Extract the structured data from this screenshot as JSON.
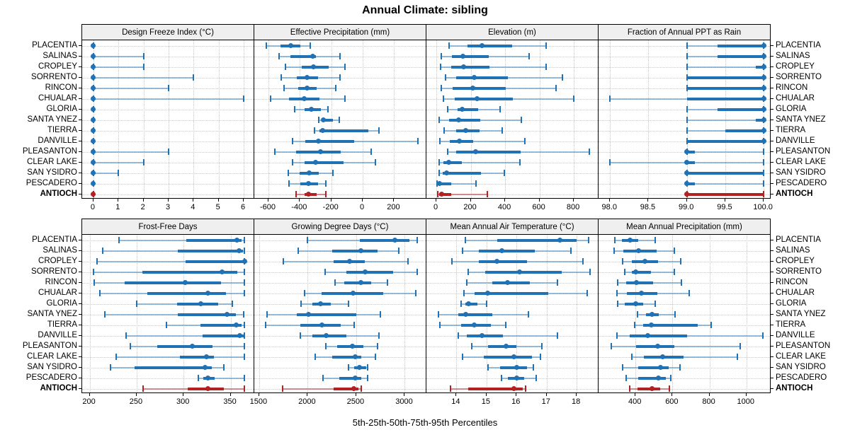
{
  "title": "Annual Climate: sibling",
  "caption": "5th-25th-50th-75th-95th Percentiles",
  "colors": {
    "series_blue": "#2171b5",
    "target_red": "#b22222",
    "strip_bg": "#efefef",
    "grid": "#c9c9c9"
  },
  "sites": [
    "PLACENTIA",
    "SALINAS",
    "CROPLEY",
    "SORRENTO",
    "RINCON",
    "CHUALAR",
    "GLORIA",
    "SANTA YNEZ",
    "TIERRA",
    "DANVILLE",
    "PLEASANTON",
    "CLEAR LAKE",
    "SAN YSIDRO",
    "PESCADERO",
    "ANTIOCH"
  ],
  "target_site": "ANTIOCH",
  "chart_data": {
    "type": "interval",
    "subtype": "percentile-dotplot-trellis",
    "percentiles": [
      5,
      25,
      50,
      75,
      95
    ],
    "grid": true,
    "layout": "2 rows x 4 columns",
    "panels": [
      {
        "title": "Design Freeze Index (°C)",
        "xlim": [
          -0.45,
          6.45
        ],
        "ticks": [
          {
            "v": 0,
            "label": "0"
          },
          {
            "v": 1,
            "label": "1"
          },
          {
            "v": 2,
            "label": "2"
          },
          {
            "v": 3,
            "label": "3"
          },
          {
            "v": 4,
            "label": "4"
          },
          {
            "v": 5,
            "label": "5"
          },
          {
            "v": 6,
            "label": "6"
          }
        ],
        "rows": [
          [
            0,
            0,
            0,
            0,
            0
          ],
          [
            0,
            0,
            0,
            0,
            2
          ],
          [
            0,
            0,
            0,
            0,
            2
          ],
          [
            0,
            0,
            0,
            0,
            4
          ],
          [
            0,
            0,
            0,
            0,
            3
          ],
          [
            0,
            0,
            0,
            0,
            6
          ],
          [
            0,
            0,
            0,
            0,
            0
          ],
          [
            0,
            0,
            0,
            0,
            0
          ],
          [
            0,
            0,
            0,
            0,
            0
          ],
          [
            0,
            0,
            0,
            0,
            0
          ],
          [
            0,
            0,
            0,
            0,
            3
          ],
          [
            0,
            0,
            0,
            0,
            2
          ],
          [
            0,
            0,
            0,
            0,
            1
          ],
          [
            0,
            0,
            0,
            0,
            0
          ],
          [
            0,
            0,
            0,
            0,
            0
          ]
        ]
      },
      {
        "title": "Effective Precipitation (mm)",
        "xlim": [
          -690,
          410
        ],
        "ticks": [
          {
            "v": -600,
            "label": "-600"
          },
          {
            "v": -400,
            "label": "-400"
          },
          {
            "v": -200,
            "label": "-200"
          },
          {
            "v": 0,
            "label": "0"
          },
          {
            "v": 200,
            "label": "200"
          }
        ],
        "rows": [
          [
            -615,
            -525,
            -460,
            -395,
            -335
          ],
          [
            -530,
            -460,
            -320,
            -300,
            -145
          ],
          [
            -490,
            -390,
            -315,
            -215,
            -115
          ],
          [
            -520,
            -420,
            -355,
            -285,
            -145
          ],
          [
            -500,
            -410,
            -355,
            -295,
            -170
          ],
          [
            -585,
            -470,
            -370,
            -275,
            -115
          ],
          [
            -435,
            -370,
            -325,
            -265,
            -220
          ],
          [
            -280,
            -260,
            -250,
            -190,
            -150
          ],
          [
            -305,
            -275,
            -255,
            35,
            105
          ],
          [
            -445,
            -365,
            -280,
            -55,
            350
          ],
          [
            -560,
            -425,
            -270,
            -140,
            55
          ],
          [
            -445,
            -370,
            -300,
            -120,
            80
          ],
          [
            -475,
            -400,
            -340,
            -280,
            -190
          ],
          [
            -470,
            -395,
            -345,
            -285,
            -235
          ],
          [
            -425,
            -370,
            -345,
            -295,
            -235
          ]
        ]
      },
      {
        "title": "Elevation (m)",
        "xlim": [
          -58,
          948
        ],
        "ticks": [
          {
            "v": 0,
            "label": "0"
          },
          {
            "v": 200,
            "label": "200"
          },
          {
            "v": 400,
            "label": "400"
          },
          {
            "v": 600,
            "label": "600"
          },
          {
            "v": 800,
            "label": "800"
          }
        ],
        "rows": [
          [
            75,
            180,
            265,
            440,
            640
          ],
          [
            30,
            90,
            155,
            305,
            540
          ],
          [
            25,
            85,
            160,
            310,
            640
          ],
          [
            55,
            115,
            220,
            415,
            735
          ],
          [
            30,
            95,
            210,
            405,
            695
          ],
          [
            40,
            105,
            235,
            445,
            800
          ],
          [
            65,
            125,
            150,
            245,
            370
          ],
          [
            15,
            75,
            130,
            255,
            495
          ],
          [
            45,
            115,
            170,
            250,
            385
          ],
          [
            20,
            80,
            135,
            215,
            515
          ],
          [
            65,
            115,
            230,
            490,
            890
          ],
          [
            15,
            40,
            70,
            150,
            485
          ],
          [
            15,
            35,
            60,
            260,
            395
          ],
          [
            4,
            10,
            20,
            85,
            230
          ],
          [
            7,
            15,
            30,
            85,
            295
          ]
        ]
      },
      {
        "title": "Fraction of Annual PPT as Rain",
        "xlim": [
          97.85,
          100.1
        ],
        "ticks": [
          {
            "v": 98.0,
            "label": "98.0"
          },
          {
            "v": 98.5,
            "label": "98.5"
          },
          {
            "v": 99.0,
            "label": "99.0"
          },
          {
            "v": 99.5,
            "label": "99.5"
          },
          {
            "v": 100.0,
            "label": "100.0"
          }
        ],
        "rows": [
          [
            99.0,
            99.4,
            100.0,
            100.0,
            100.0
          ],
          [
            99.0,
            99.4,
            100.0,
            100.0,
            100.0
          ],
          [
            99.0,
            99.9,
            100.0,
            100.0,
            100.0
          ],
          [
            99.0,
            99.0,
            100.0,
            100.0,
            100.0
          ],
          [
            99.0,
            99.0,
            100.0,
            100.0,
            100.0
          ],
          [
            98.0,
            99.0,
            100.0,
            100.0,
            100.0
          ],
          [
            99.0,
            99.4,
            100.0,
            100.0,
            100.0
          ],
          [
            99.0,
            99.9,
            100.0,
            100.0,
            100.0
          ],
          [
            99.0,
            99.5,
            100.0,
            100.0,
            100.0
          ],
          [
            99.0,
            99.0,
            100.0,
            100.0,
            100.0
          ],
          [
            99.0,
            99.0,
            99.0,
            99.1,
            100.0
          ],
          [
            98.0,
            99.0,
            99.0,
            99.1,
            100.0
          ],
          [
            99.0,
            99.0,
            99.0,
            100.0,
            100.0
          ],
          [
            99.0,
            99.0,
            99.0,
            99.1,
            100.0
          ],
          [
            99.0,
            99.0,
            99.0,
            100.0,
            100.0
          ]
        ]
      },
      {
        "title": "Frost-Free Days",
        "xlim": [
          192,
          376
        ],
        "ticks": [
          {
            "v": 200,
            "label": "200"
          },
          {
            "v": 250,
            "label": "250"
          },
          {
            "v": 300,
            "label": "300"
          },
          {
            "v": 350,
            "label": "350"
          }
        ],
        "rows": [
          [
            231,
            303,
            357,
            362,
            365
          ],
          [
            214,
            294,
            359,
            363,
            365
          ],
          [
            208,
            302,
            365,
            365,
            365
          ],
          [
            204,
            256,
            341,
            357,
            365
          ],
          [
            205,
            237,
            302,
            340,
            365
          ],
          [
            211,
            261,
            326,
            345,
            365
          ],
          [
            250,
            293,
            318,
            337,
            352
          ],
          [
            216,
            294,
            346,
            356,
            364
          ],
          [
            282,
            318,
            356,
            362,
            365
          ],
          [
            239,
            320,
            360,
            364,
            365
          ],
          [
            243,
            272,
            309,
            331,
            365
          ],
          [
            228,
            296,
            324,
            332,
            365
          ],
          [
            222,
            248,
            323,
            330,
            343
          ],
          [
            316,
            321,
            326,
            333,
            365
          ],
          [
            257,
            304,
            326,
            343,
            365
          ]
        ]
      },
      {
        "title": "Growing Degree Days (°C)",
        "xlim": [
          1450,
          3230
        ],
        "ticks": [
          {
            "v": 1500,
            "label": "1500"
          },
          {
            "v": 2000,
            "label": "2000"
          },
          {
            "v": 2500,
            "label": "2500"
          },
          {
            "v": 3000,
            "label": "3000"
          }
        ],
        "rows": [
          [
            2000,
            2540,
            2900,
            3050,
            3130
          ],
          [
            1900,
            2255,
            2545,
            2720,
            2940
          ],
          [
            1750,
            2270,
            2430,
            2590,
            3030
          ],
          [
            2180,
            2400,
            2590,
            2880,
            3130
          ],
          [
            2285,
            2375,
            2545,
            2655,
            2825
          ],
          [
            1965,
            2145,
            2470,
            2780,
            3115
          ],
          [
            1935,
            2045,
            2135,
            2240,
            2420
          ],
          [
            1580,
            1890,
            2005,
            2500,
            2745
          ],
          [
            1570,
            1925,
            2145,
            2340,
            2475
          ],
          [
            1925,
            2050,
            2190,
            2400,
            2735
          ],
          [
            2185,
            2305,
            2460,
            2570,
            2720
          ],
          [
            2080,
            2255,
            2490,
            2555,
            2695
          ],
          [
            2420,
            2480,
            2535,
            2600,
            2620
          ],
          [
            2160,
            2325,
            2490,
            2550,
            2620
          ],
          [
            1740,
            2270,
            2475,
            2520,
            2550
          ]
        ]
      },
      {
        "title": "Mean Annual Air Temperature (°C)",
        "xlim": [
          13.0,
          18.75
        ],
        "ticks": [
          {
            "v": 14,
            "label": "14"
          },
          {
            "v": 15,
            "label": "15"
          },
          {
            "v": 16,
            "label": "16"
          },
          {
            "v": 17,
            "label": "17"
          },
          {
            "v": 18,
            "label": "18"
          }
        ],
        "rows": [
          [
            14.3,
            15.35,
            17.45,
            18.0,
            18.4
          ],
          [
            14.2,
            14.75,
            15.5,
            16.6,
            17.8
          ],
          [
            13.85,
            14.75,
            15.35,
            16.35,
            18.2
          ],
          [
            14.4,
            14.95,
            16.1,
            17.5,
            18.45
          ],
          [
            14.35,
            15.2,
            15.7,
            16.45,
            17.35
          ],
          [
            14.25,
            14.6,
            15.05,
            17.05,
            18.35
          ],
          [
            14.15,
            14.3,
            14.4,
            14.7,
            15.0
          ],
          [
            13.4,
            14.05,
            14.3,
            15.2,
            16.4
          ],
          [
            13.45,
            14.15,
            14.6,
            15.15,
            15.65
          ],
          [
            14.05,
            14.35,
            14.85,
            15.55,
            17.35
          ],
          [
            14.5,
            15.05,
            15.65,
            16.0,
            16.85
          ],
          [
            14.2,
            14.9,
            15.9,
            16.5,
            16.8
          ],
          [
            15.05,
            15.45,
            16.0,
            16.35,
            16.55
          ],
          [
            15.5,
            15.7,
            16.0,
            16.25,
            16.65
          ],
          [
            13.8,
            14.4,
            15.9,
            16.2,
            16.3
          ]
        ]
      },
      {
        "title": "Mean Annual Precipitation (mm)",
        "xlim": [
          200,
          1135
        ],
        "ticks": [
          {
            "v": 400,
            "label": "400"
          },
          {
            "v": 600,
            "label": "600"
          },
          {
            "v": 800,
            "label": "800"
          },
          {
            "v": 1000,
            "label": "1000"
          }
        ],
        "rows": [
          [
            290,
            325,
            370,
            415,
            505
          ],
          [
            285,
            335,
            415,
            515,
            610
          ],
          [
            330,
            380,
            450,
            520,
            645
          ],
          [
            340,
            380,
            400,
            485,
            610
          ],
          [
            305,
            350,
            405,
            495,
            650
          ],
          [
            300,
            355,
            430,
            520,
            690
          ],
          [
            305,
            340,
            400,
            440,
            505
          ],
          [
            410,
            455,
            490,
            525,
            615
          ],
          [
            395,
            440,
            485,
            735,
            810
          ],
          [
            300,
            370,
            465,
            680,
            1090
          ],
          [
            270,
            405,
            520,
            610,
            965
          ],
          [
            380,
            445,
            545,
            660,
            950
          ],
          [
            330,
            415,
            535,
            580,
            640
          ],
          [
            350,
            415,
            525,
            565,
            590
          ],
          [
            370,
            410,
            490,
            535,
            585
          ]
        ]
      }
    ]
  }
}
